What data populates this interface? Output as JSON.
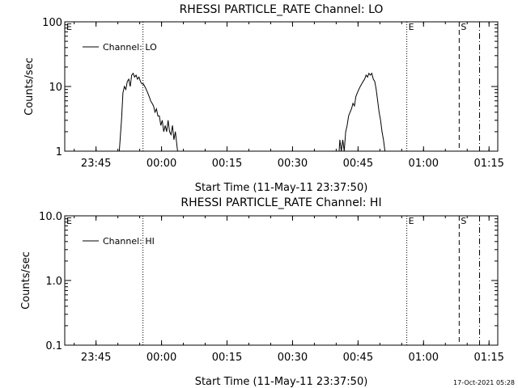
{
  "footer": {
    "timestamp": "17-Oct-2021 05:28"
  },
  "chart_data": [
    {
      "type": "line",
      "title": "RHESSI PARTICLE_RATE Channel: LO",
      "xlabel": "Start Time (11-May-11 23:37:50)",
      "ylabel": "Counts/sec",
      "yscale": "log",
      "ylim": [
        1,
        100
      ],
      "ytick_labels": [
        "1",
        "10",
        "100"
      ],
      "xlim": [
        "23:37:50",
        "01:17:00"
      ],
      "xtick_labels": [
        "23:45",
        "00:00",
        "00:15",
        "00:30",
        "00:45",
        "01:00",
        "01:15"
      ],
      "legend": {
        "position": "top-left",
        "entries": [
          "Channel: LO"
        ]
      },
      "grid": false,
      "markers": [
        {
          "label": "E",
          "time": "23:37:50",
          "style": "none"
        },
        {
          "label": "",
          "time": "23:55:45",
          "style": "dotted"
        },
        {
          "label": "E",
          "time": "00:56:10",
          "style": "dotted"
        },
        {
          "label": "S",
          "time": "01:08:10",
          "style": "dashed"
        },
        {
          "label": "",
          "time": "01:12:50",
          "style": "dashdot"
        }
      ],
      "series": [
        {
          "name": "Channel: LO",
          "segments": [
            [
              [
                "23:50:20",
                1.0
              ],
              [
                "23:50:50",
                3.0
              ],
              [
                "23:51:10",
                8.0
              ],
              [
                "23:51:30",
                10.0
              ],
              [
                "23:51:50",
                9.0
              ],
              [
                "23:52:10",
                12.0
              ],
              [
                "23:52:30",
                13.0
              ],
              [
                "23:52:50",
                10.0
              ],
              [
                "23:53:10",
                15.0
              ],
              [
                "23:53:30",
                16.0
              ],
              [
                "23:53:50",
                14.0
              ],
              [
                "23:54:10",
                15.0
              ],
              [
                "23:54:30",
                13.0
              ],
              [
                "23:54:50",
                14.0
              ],
              [
                "23:55:10",
                12.0
              ],
              [
                "23:55:30",
                11.0
              ],
              [
                "23:55:50",
                11.0
              ],
              [
                "23:56:10",
                10.0
              ],
              [
                "23:56:30",
                9.0
              ],
              [
                "23:56:50",
                8.0
              ],
              [
                "23:57:10",
                7.0
              ],
              [
                "23:57:30",
                6.0
              ],
              [
                "23:57:50",
                5.5
              ],
              [
                "23:58:10",
                5.0
              ],
              [
                "23:58:30",
                4.0
              ],
              [
                "23:58:50",
                4.5
              ],
              [
                "23:59:10",
                3.5
              ],
              [
                "23:59:30",
                3.5
              ],
              [
                "23:59:50",
                2.5
              ],
              [
                "00:00:10",
                3.0
              ],
              [
                "00:00:30",
                2.0
              ],
              [
                "00:00:50",
                2.5
              ],
              [
                "00:01:10",
                2.0
              ],
              [
                "00:01:30",
                3.0
              ],
              [
                "00:01:50",
                2.0
              ],
              [
                "00:02:10",
                1.8
              ],
              [
                "00:02:30",
                2.5
              ],
              [
                "00:02:50",
                1.5
              ],
              [
                "00:03:10",
                2.0
              ],
              [
                "00:03:40",
                1.0
              ]
            ],
            [
              [
                "00:40:40",
                1.0
              ],
              [
                "00:40:50",
                1.5
              ],
              [
                "00:41:10",
                1.0
              ],
              [
                "00:41:30",
                1.5
              ],
              [
                "00:41:50",
                1.0
              ],
              [
                "00:42:10",
                2.0
              ],
              [
                "00:42:30",
                2.5
              ],
              [
                "00:42:50",
                3.5
              ],
              [
                "00:43:10",
                4.0
              ],
              [
                "00:43:30",
                4.5
              ],
              [
                "00:43:50",
                5.5
              ],
              [
                "00:44:10",
                5.0
              ],
              [
                "00:44:30",
                7.0
              ],
              [
                "00:44:50",
                8.0
              ],
              [
                "00:45:10",
                9.0
              ],
              [
                "00:45:30",
                10.0
              ],
              [
                "00:45:50",
                11.0
              ],
              [
                "00:46:10",
                12.0
              ],
              [
                "00:46:30",
                13.0
              ],
              [
                "00:46:50",
                15.0
              ],
              [
                "00:47:10",
                14.0
              ],
              [
                "00:47:30",
                16.0
              ],
              [
                "00:47:50",
                15.0
              ],
              [
                "00:48:10",
                16.0
              ],
              [
                "00:48:30",
                13.0
              ],
              [
                "00:48:50",
                12.0
              ],
              [
                "00:49:10",
                9.0
              ],
              [
                "00:49:30",
                6.0
              ],
              [
                "00:49:50",
                4.0
              ],
              [
                "00:50:10",
                3.0
              ],
              [
                "00:50:30",
                2.0
              ],
              [
                "00:50:50",
                1.5
              ],
              [
                "00:51:10",
                1.0
              ]
            ]
          ]
        }
      ]
    },
    {
      "type": "line",
      "title": "RHESSI PARTICLE_RATE Channel: HI",
      "xlabel": "Start Time (11-May-11 23:37:50)",
      "ylabel": "Counts/sec",
      "yscale": "log",
      "ylim": [
        0.1,
        10
      ],
      "ytick_labels": [
        "0.1",
        "1.0",
        "10.0"
      ],
      "xlim": [
        "23:37:50",
        "01:17:00"
      ],
      "xtick_labels": [
        "23:45",
        "00:00",
        "00:15",
        "00:30",
        "00:45",
        "01:00",
        "01:15"
      ],
      "legend": {
        "position": "top-left",
        "entries": [
          "Channel: HI"
        ]
      },
      "grid": false,
      "markers": [
        {
          "label": "E",
          "time": "23:37:50",
          "style": "none"
        },
        {
          "label": "",
          "time": "23:55:45",
          "style": "dotted"
        },
        {
          "label": "E",
          "time": "00:56:10",
          "style": "dotted"
        },
        {
          "label": "S",
          "time": "01:08:10",
          "style": "dashed"
        },
        {
          "label": "",
          "time": "01:12:50",
          "style": "dashdot"
        }
      ],
      "series": [
        {
          "name": "Channel: HI",
          "segments": []
        }
      ]
    }
  ]
}
